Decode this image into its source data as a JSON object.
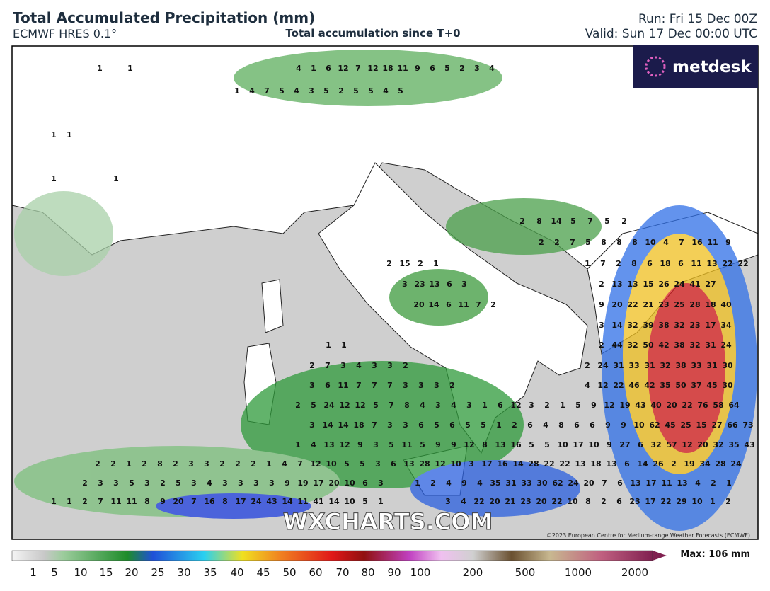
{
  "header": {
    "title": "Total Accumulated Precipitation (mm)",
    "model": "ECMWF HRES 0.1°",
    "subtitle": "Total accumulation since T+0",
    "run": "Run: Fri 15 Dec 00Z",
    "valid": "Valid: Sun 17 Dec 00:00 UTC"
  },
  "map": {
    "logo": "metdesk",
    "watermark": "WXCHARTS.COM",
    "copyright": "©2023 European Centre for Medium-range Weather Forecasts (ECMWF)",
    "values": [
      [
        1,
        1
      ],
      [
        4,
        1,
        6,
        12,
        7,
        12,
        18,
        11,
        9,
        6,
        5,
        2,
        3,
        4
      ],
      [
        1,
        4,
        7,
        5,
        4,
        3,
        5,
        2,
        5,
        5,
        4,
        5
      ],
      [
        1,
        1
      ],
      [
        1,
        1
      ],
      [
        2,
        8,
        14,
        5,
        7,
        5,
        2
      ],
      [
        2,
        2,
        7,
        5,
        8,
        8,
        8,
        10,
        4,
        7,
        16,
        11,
        9
      ],
      [
        2,
        15,
        2,
        1
      ],
      [
        1,
        7,
        2,
        8,
        6,
        18,
        6,
        11,
        13,
        22,
        22
      ],
      [
        3,
        23,
        13,
        6,
        3
      ],
      [
        2,
        13,
        13,
        15,
        26,
        24,
        41,
        27
      ],
      [
        20,
        14,
        6,
        11,
        7,
        2
      ],
      [
        9,
        20,
        22,
        21,
        23,
        25,
        28,
        18,
        40
      ],
      [
        3,
        14,
        32,
        39,
        38,
        32,
        23,
        17,
        34
      ],
      [
        1,
        1
      ],
      [
        2,
        44,
        32,
        50,
        42,
        38,
        32,
        31,
        24
      ],
      [
        2,
        7,
        3,
        4,
        3,
        3,
        2
      ],
      [
        2,
        24,
        31,
        33,
        31,
        32,
        38,
        33,
        31,
        30
      ],
      [
        3,
        6,
        11,
        7,
        7,
        7,
        3,
        3,
        3,
        2
      ],
      [
        4,
        12,
        22,
        46,
        42,
        35,
        50,
        37,
        45,
        30
      ],
      [
        2,
        5,
        24,
        12,
        12,
        5,
        7,
        8,
        4,
        3,
        4,
        3,
        1,
        6,
        12,
        3,
        2,
        1,
        5,
        9,
        12,
        19,
        43,
        40,
        20,
        22,
        76,
        58,
        64
      ],
      [
        3,
        14,
        14,
        18,
        7,
        3,
        3,
        6,
        5,
        6,
        5,
        5,
        1,
        2,
        6,
        4,
        8,
        6,
        6,
        9,
        9,
        10,
        62,
        45,
        25,
        15,
        27,
        66,
        73
      ],
      [
        1,
        4,
        13,
        12,
        9,
        3,
        5,
        11,
        5,
        9,
        9,
        12,
        8,
        13,
        16,
        5,
        5,
        10,
        17,
        10,
        9,
        27,
        6,
        32,
        57,
        12,
        20,
        32,
        35,
        43
      ],
      [
        2,
        2,
        1,
        2,
        8,
        2,
        3,
        3,
        2,
        2,
        2,
        1,
        4,
        7,
        12,
        10,
        5,
        5,
        3,
        6,
        13,
        28,
        12,
        10,
        3,
        17,
        16,
        14,
        28,
        22,
        22,
        13,
        18,
        13,
        6,
        14,
        26,
        2,
        19,
        34,
        28,
        24
      ],
      [
        2,
        3,
        3,
        5,
        3,
        2,
        5,
        3,
        4,
        3,
        3,
        3,
        3,
        9,
        19,
        17,
        20,
        10,
        6,
        3
      ],
      [
        1,
        2,
        4,
        9,
        4,
        35,
        31,
        33,
        30,
        62,
        24,
        20,
        7,
        6,
        13,
        17,
        11,
        13,
        4,
        2,
        1
      ],
      [
        1,
        1,
        2,
        7,
        11,
        11,
        8,
        9,
        20,
        7,
        16,
        8,
        17,
        24,
        43,
        14,
        11,
        41,
        14,
        10,
        5,
        1
      ],
      [
        3,
        4,
        22,
        20,
        21,
        23,
        20,
        22,
        10,
        8,
        2,
        6,
        23,
        17,
        22,
        29,
        10,
        1,
        2
      ]
    ]
  },
  "legend": {
    "ticks": [
      1,
      5,
      10,
      15,
      20,
      25,
      30,
      35,
      40,
      45,
      50,
      60,
      70,
      80,
      90,
      100,
      200,
      500,
      1000,
      2000
    ],
    "max": "Max: 106 mm"
  }
}
